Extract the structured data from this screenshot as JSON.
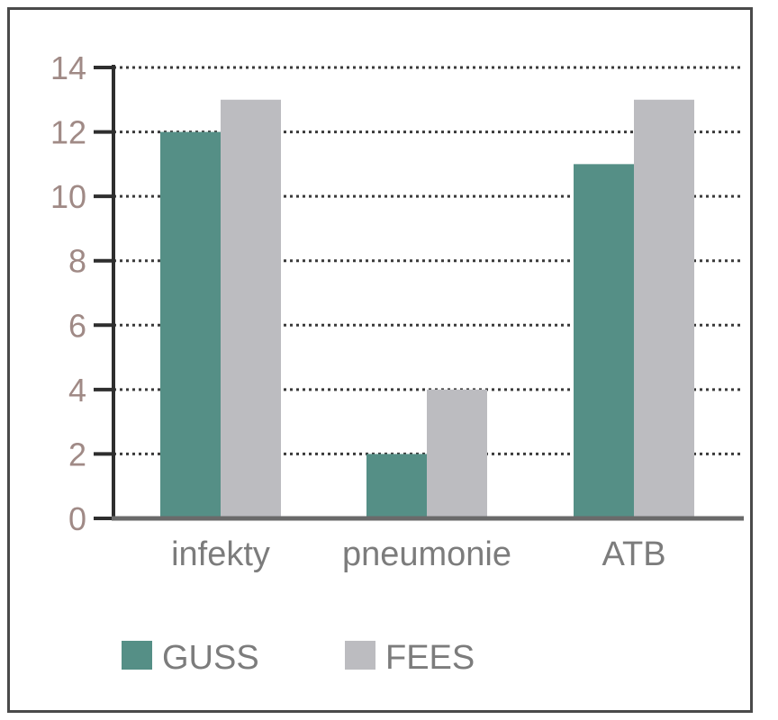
{
  "chart_data": {
    "type": "bar",
    "categories": [
      "infekty",
      "pneumonie",
      "ATB"
    ],
    "series": [
      {
        "name": "GUSS",
        "values": [
          12,
          2,
          11
        ],
        "color": "#558f86"
      },
      {
        "name": "FEES",
        "values": [
          13,
          4,
          13
        ],
        "color": "#bcbcc0"
      }
    ],
    "ylim": [
      0,
      14
    ],
    "yticks": [
      0,
      2,
      4,
      6,
      8,
      10,
      12,
      14
    ],
    "grid": true,
    "legend": "bottom"
  }
}
